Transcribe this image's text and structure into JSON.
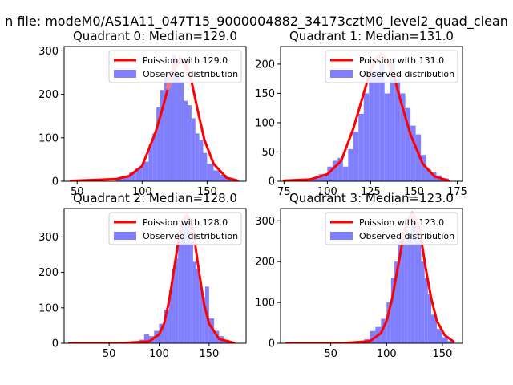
{
  "figure": {
    "suptitle": "n file: modeM0/AS1A11_047T15_9000004882_34173cztM0_level2_quad_clean",
    "colors": {
      "bars": "#8080ff",
      "poisson": "#ff0000",
      "frame": "#000000",
      "legend_border": "#cccccc"
    }
  },
  "chart_data": [
    {
      "type": "bar",
      "title": "Quadrant 0: Median=129.0",
      "xlim": [
        40,
        180
      ],
      "ylim": [
        0,
        310
      ],
      "xticks": [
        50,
        100,
        150
      ],
      "yticks": [
        0,
        100,
        200,
        300
      ],
      "legend": {
        "placement": "upper-right",
        "entries": [
          "Poission with 129.0",
          "Observed distribution"
        ]
      },
      "hist": {
        "edges": [
          80,
          85,
          90,
          95,
          100,
          105,
          108,
          111,
          114,
          117,
          120,
          123,
          126,
          129,
          132,
          135,
          138,
          141,
          144,
          147,
          150,
          155,
          160,
          165,
          170,
          175
        ],
        "values": [
          5,
          10,
          20,
          30,
          45,
          85,
          110,
          170,
          210,
          250,
          240,
          290,
          250,
          230,
          185,
          175,
          145,
          110,
          95,
          65,
          40,
          25,
          15,
          8,
          3
        ]
      },
      "poisson": {
        "mu": 129,
        "x_range": [
          45,
          173
        ],
        "x": [
          45,
          80,
          90,
          100,
          110,
          115,
          120,
          125,
          129,
          133,
          138,
          143,
          148,
          155,
          165,
          173
        ],
        "y": [
          1,
          5,
          12,
          35,
          110,
          160,
          215,
          262,
          282,
          270,
          230,
          160,
          95,
          40,
          8,
          2
        ]
      }
    },
    {
      "type": "bar",
      "title": "Quadrant 1: Median=131.0",
      "xlim": [
        73,
        178
      ],
      "ylim": [
        0,
        230
      ],
      "xticks": [
        75,
        100,
        125,
        150,
        175
      ],
      "yticks": [
        0,
        50,
        100,
        150,
        200
      ],
      "legend": {
        "placement": "upper-right",
        "entries": [
          "Poission with 131.0",
          "Observed distribution"
        ]
      },
      "hist": {
        "edges": [
          90,
          95,
          100,
          103,
          106,
          109,
          112,
          115,
          118,
          121,
          124,
          127,
          130,
          133,
          136,
          139,
          142,
          145,
          148,
          151,
          154,
          157,
          160,
          163,
          166,
          170
        ],
        "values": [
          5,
          12,
          25,
          35,
          40,
          25,
          55,
          85,
          115,
          150,
          185,
          190,
          200,
          150,
          210,
          175,
          150,
          125,
          95,
          80,
          45,
          20,
          15,
          10,
          5
        ]
      },
      "poisson": {
        "mu": 131,
        "x_range": [
          75,
          170
        ],
        "x": [
          75,
          90,
          100,
          108,
          115,
          120,
          125,
          128,
          131,
          134,
          138,
          142,
          148,
          155,
          162,
          170
        ],
        "y": [
          1,
          3,
          12,
          35,
          90,
          140,
          190,
          208,
          216,
          208,
          185,
          140,
          80,
          30,
          8,
          1
        ]
      }
    },
    {
      "type": "bar",
      "title": "Quadrant 2: Median=128.0",
      "xlim": [
        5,
        187
      ],
      "ylim": [
        0,
        380
      ],
      "xticks": [
        50,
        100,
        150
      ],
      "yticks": [
        0,
        100,
        200,
        300
      ],
      "legend": {
        "placement": "upper-right",
        "entries": [
          "Poission with 128.0",
          "Observed distribution"
        ]
      },
      "hist": {
        "edges": [
          75,
          80,
          85,
          90,
          95,
          100,
          105,
          110,
          113,
          116,
          119,
          122,
          125,
          128,
          131,
          134,
          137,
          140,
          143,
          146,
          150,
          155,
          160,
          165,
          170
        ],
        "values": [
          5,
          10,
          25,
          20,
          35,
          55,
          95,
          150,
          210,
          240,
          300,
          330,
          360,
          340,
          290,
          230,
          210,
          175,
          130,
          160,
          70,
          35,
          20,
          10
        ]
      },
      "poisson": {
        "mu": 128,
        "x_range": [
          10,
          175
        ],
        "x": [
          10,
          60,
          90,
          100,
          105,
          110,
          115,
          120,
          124,
          128,
          132,
          136,
          140,
          145,
          150,
          160,
          175
        ],
        "y": [
          0,
          0,
          5,
          25,
          55,
          120,
          210,
          300,
          345,
          360,
          340,
          280,
          200,
          110,
          55,
          12,
          1
        ]
      }
    },
    {
      "type": "bar",
      "title": "Quadrant 3: Median=123.0",
      "xlim": [
        5,
        168
      ],
      "ylim": [
        0,
        330
      ],
      "xticks": [
        50,
        100,
        150
      ],
      "yticks": [
        0,
        100,
        200,
        300
      ],
      "legend": {
        "placement": "upper-right",
        "entries": [
          "Poission with 123.0",
          "Observed distribution"
        ]
      },
      "hist": {
        "edges": [
          75,
          80,
          85,
          90,
          95,
          100,
          104,
          107,
          110,
          113,
          116,
          119,
          122,
          125,
          128,
          131,
          134,
          137,
          140,
          145,
          150,
          155,
          160
        ],
        "values": [
          5,
          10,
          30,
          40,
          60,
          100,
          160,
          200,
          250,
          270,
          300,
          270,
          320,
          300,
          260,
          200,
          160,
          120,
          70,
          35,
          15,
          5
        ]
      },
      "poisson": {
        "mu": 123,
        "x_range": [
          10,
          160
        ],
        "x": [
          10,
          60,
          85,
          95,
          100,
          105,
          110,
          115,
          119,
          123,
          127,
          131,
          135,
          140,
          145,
          152,
          160
        ],
        "y": [
          0,
          0,
          5,
          25,
          55,
          110,
          185,
          260,
          300,
          316,
          300,
          255,
          185,
          110,
          55,
          20,
          4
        ]
      }
    }
  ]
}
